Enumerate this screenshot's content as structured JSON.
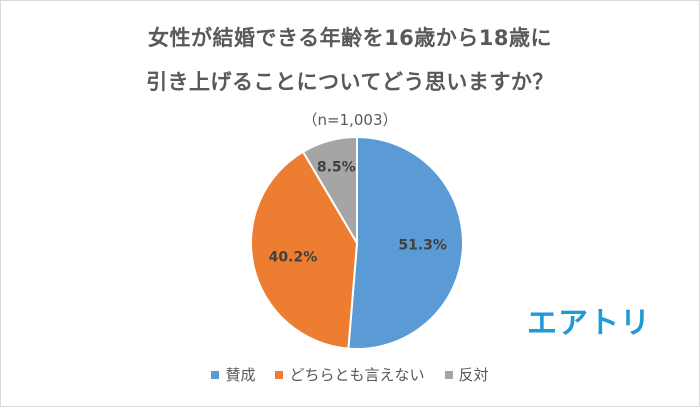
{
  "chart_data": {
    "type": "pie",
    "title_line1": "女性が結婚できる年齢を16歳から18歳に",
    "title_line2": "引き上げることについてどう思いますか？",
    "subtitle": "（n=1,003）",
    "categories": [
      "賛成",
      "どちらとも言えない",
      "反対"
    ],
    "values": [
      51.3,
      40.2,
      8.5
    ],
    "value_labels": [
      "51.3%",
      "40.2%",
      "8.5%"
    ],
    "colors": [
      "#5b9bd5",
      "#ed7d31",
      "#a5a5a5"
    ],
    "legend_position": "bottom"
  },
  "brand": {
    "logo_text": "エアトリ",
    "logo_color": "#1f9ad6"
  }
}
